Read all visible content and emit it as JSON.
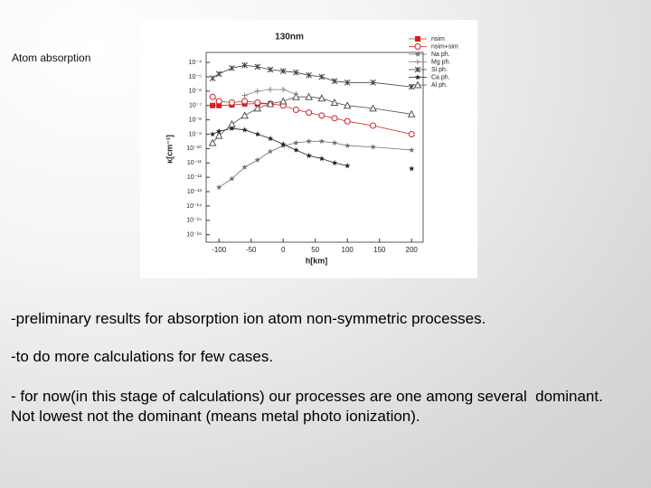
{
  "slide_label": "Atom absorption",
  "chart_data": {
    "type": "line",
    "title": "130nm",
    "x_label": "h[km]",
    "y_label": "κ[cm⁻¹]",
    "log_y": true,
    "x": [
      -110,
      -100,
      -80,
      -60,
      -40,
      -20,
      0,
      20,
      40,
      60,
      80,
      100,
      140,
      200
    ],
    "xlim": [
      -120,
      218
    ],
    "xticks": [
      -100,
      -50,
      0,
      50,
      100,
      150,
      200
    ],
    "ylim": [
      3e-17,
      0.0005
    ],
    "yticks": [
      {
        "value": 0.0001,
        "label": "10⁻⁴"
      },
      {
        "value": 1e-05,
        "label": "10⁻⁵"
      },
      {
        "value": 1e-06,
        "label": "10⁻⁶"
      },
      {
        "value": 1e-07,
        "label": "10⁻⁷"
      },
      {
        "value": 1e-08,
        "label": "10⁻⁸"
      },
      {
        "value": 1e-09,
        "label": "10⁻⁹"
      },
      {
        "value": 1e-10,
        "label": "10⁻¹⁰"
      },
      {
        "value": 1e-11,
        "label": "10⁻¹¹"
      },
      {
        "value": 1e-12,
        "label": "10⁻¹²"
      },
      {
        "value": 1e-13,
        "label": "10⁻¹³"
      },
      {
        "value": 1e-14,
        "label": "10⁻¹⁴"
      },
      {
        "value": 1e-15,
        "label": "10⁻¹⁵"
      },
      {
        "value": 1e-16,
        "label": "10⁻¹⁶"
      }
    ],
    "series": [
      {
        "name": "nsim",
        "color": "#d42020",
        "marker": "square",
        "values": [
          1e-07,
          1e-07,
          1.1e-07,
          1.3e-07,
          1.3e-07,
          1.3e-07,
          null,
          null,
          null,
          null,
          null,
          null,
          null,
          null
        ]
      },
      {
        "name": "nsim+sim",
        "color": "#d42020",
        "marker": "circle",
        "values": [
          4e-07,
          2e-07,
          1.6e-07,
          2e-07,
          1.6e-07,
          1.3e-07,
          1e-07,
          5e-08,
          3.2e-08,
          2e-08,
          1.3e-08,
          7.9e-09,
          4e-09,
          1e-09
        ]
      },
      {
        "name": "Na ph.",
        "color": "#707070",
        "marker": "star",
        "values": [
          null,
          2e-13,
          7.9e-13,
          5e-12,
          1.6e-11,
          6.3e-11,
          1.6e-10,
          2.5e-10,
          3.2e-10,
          3.2e-10,
          2.5e-10,
          1.6e-10,
          1.3e-10,
          7.9e-11
        ]
      },
      {
        "name": "Mg ph.",
        "color": "#808080",
        "marker": "plus",
        "values": [
          null,
          null,
          null,
          5e-07,
          1e-06,
          1.3e-06,
          1.3e-06,
          6.3e-07,
          null,
          null,
          null,
          null,
          null,
          null
        ]
      },
      {
        "name": "Si ph.",
        "color": "#404040",
        "marker": "asterisk",
        "values": [
          7.9e-06,
          1.6e-05,
          4e-05,
          6.3e-05,
          5e-05,
          3.2e-05,
          2.5e-05,
          2e-05,
          1.3e-05,
          1e-05,
          5e-06,
          4e-06,
          4e-06,
          2e-06
        ]
      },
      {
        "name": "Ca ph.",
        "color": "#202020",
        "marker": "star",
        "values": [
          1e-09,
          1.6e-09,
          2.5e-09,
          2e-09,
          1e-09,
          5e-10,
          2e-10,
          7.9e-11,
          3.2e-11,
          2e-11,
          1e-11,
          6.3e-12,
          null,
          4e-12
        ]
      },
      {
        "name": "Al ph.",
        "color": "#505050",
        "marker": "triangle",
        "values": [
          2.5e-10,
          7.9e-10,
          5e-09,
          2e-08,
          6.3e-08,
          1.3e-07,
          2e-07,
          4e-07,
          4e-07,
          3.2e-07,
          1.6e-07,
          1e-07,
          6.3e-08,
          2.5e-08
        ]
      }
    ]
  },
  "paragraphs": [
    "-preliminary results for absorption ion atom non-symmetric processes.",
    "-to do more calculations for few cases.",
    "- for now(in this stage of calculations) our processes are one among several  dominant.",
    "Not lowest not the dominant (means metal photo ionization)."
  ]
}
